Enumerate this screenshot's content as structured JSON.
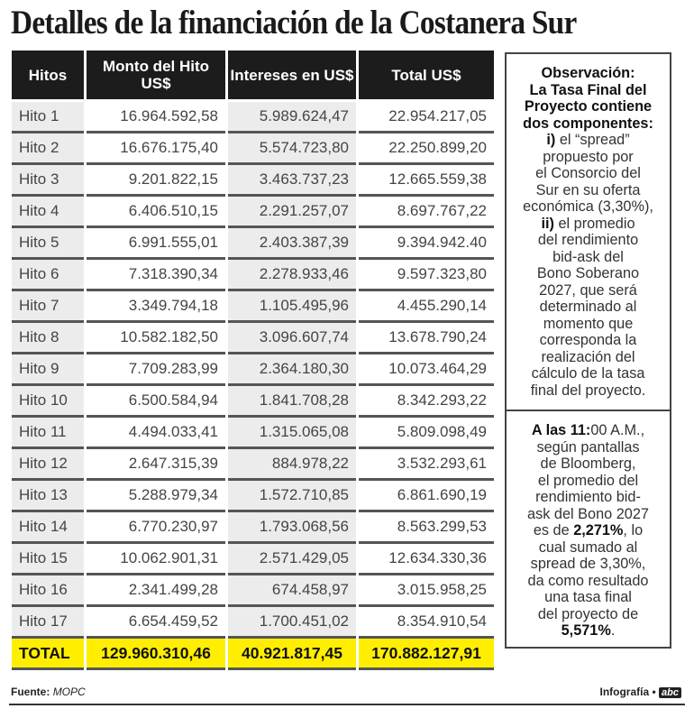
{
  "title": "Detalles de la financiación de la Costanera Sur",
  "table": {
    "headers": [
      "Hitos",
      "Monto del Hito US$",
      "Intereses en US$",
      "Total US$"
    ],
    "rows": [
      [
        "Hito 1",
        "16.964.592,58",
        "5.989.624,47",
        "22.954.217,05"
      ],
      [
        "Hito 2",
        "16.676.175,40",
        "5.574.723,80",
        "22.250.899,20"
      ],
      [
        "Hito 3",
        "9.201.822,15",
        "3.463.737,23",
        "12.665.559,38"
      ],
      [
        "Hito 4",
        "6.406.510,15",
        "2.291.257,07",
        "8.697.767,22"
      ],
      [
        "Hito 5",
        "6.991.555,01",
        "2.403.387,39",
        "9.394.942.40"
      ],
      [
        "Hito 6",
        "7.318.390,34",
        "2.278.933,46",
        "9.597.323,80"
      ],
      [
        "Hito 7",
        "3.349.794,18",
        "1.105.495,96",
        "4.455.290,14"
      ],
      [
        "Hito 8",
        "10.582.182,50",
        "3.096.607,74",
        "13.678.790,24"
      ],
      [
        "Hito 9",
        "7.709.283,99",
        "2.364.180,30",
        "10.073.464,29"
      ],
      [
        "Hito 10",
        "6.500.584,94",
        "1.841.708,28",
        "8.342.293,22"
      ],
      [
        "Hito 11",
        "4.494.033,41",
        "1.315.065,08",
        "5.809.098,49"
      ],
      [
        "Hito 12",
        "2.647.315,39",
        "884.978,22",
        "3.532.293,61"
      ],
      [
        "Hito 13",
        "5.288.979,34",
        "1.572.710,85",
        "6.861.690,19"
      ],
      [
        "Hito 14",
        "6.770.230,97",
        "1.793.068,56",
        "8.563.299,53"
      ],
      [
        "Hito 15",
        "10.062.901,31",
        "2.571.429,05",
        "12.634.330,36"
      ],
      [
        "Hito 16",
        "2.341.499,28",
        "674.458,97",
        "3.015.958,25"
      ],
      [
        "Hito 17",
        "6.654.459,52",
        "1.700.451,02",
        "8.354.910,54"
      ]
    ],
    "total": [
      "TOTAL",
      "129.960.310,46",
      "40.921.817,45",
      "170.882.127,91"
    ]
  },
  "observation": {
    "lines": [
      [
        {
          "t": "Observación:",
          "b": true
        }
      ],
      [
        {
          "t": "La Tasa Final del",
          "b": true
        }
      ],
      [
        {
          "t": "Proyecto contiene",
          "b": true
        }
      ],
      [
        {
          "t": "dos componentes:",
          "b": true
        }
      ],
      [
        {
          "t": "i)",
          "b": true
        },
        {
          "t": " el “spread”",
          "b": false
        }
      ],
      [
        {
          "t": "propuesto por",
          "b": false
        }
      ],
      [
        {
          "t": "el Consorcio del",
          "b": false
        }
      ],
      [
        {
          "t": "Sur en su oferta",
          "b": false
        }
      ],
      [
        {
          "t": "económica (3,30%),",
          "b": false
        }
      ],
      [
        {
          "t": "ii)",
          "b": true
        },
        {
          "t": " el promedio",
          "b": false
        }
      ],
      [
        {
          "t": "del rendimiento",
          "b": false
        }
      ],
      [
        {
          "t": "bid-ask del",
          "b": false
        }
      ],
      [
        {
          "t": "Bono Soberano",
          "b": false
        }
      ],
      [
        {
          "t": "2027, que será",
          "b": false
        }
      ],
      [
        {
          "t": "determinado al",
          "b": false
        }
      ],
      [
        {
          "t": "momento que",
          "b": false
        }
      ],
      [
        {
          "t": "corresponda la",
          "b": false
        }
      ],
      [
        {
          "t": "realización del",
          "b": false
        }
      ],
      [
        {
          "t": "cálculo de la tasa",
          "b": false
        }
      ],
      [
        {
          "t": "final del proyecto.",
          "b": false
        }
      ]
    ]
  },
  "note": {
    "lines": [
      [
        {
          "t": "A las 11:",
          "b": true
        },
        {
          "t": "00 A.M.,",
          "b": false
        }
      ],
      [
        {
          "t": "según pantallas",
          "b": false
        }
      ],
      [
        {
          "t": "de Bloomberg,",
          "b": false
        }
      ],
      [
        {
          "t": "el promedio del",
          "b": false
        }
      ],
      [
        {
          "t": "rendimiento bid-",
          "b": false
        }
      ],
      [
        {
          "t": "ask del Bono 2027",
          "b": false
        }
      ],
      [
        {
          "t": "es de ",
          "b": false
        },
        {
          "t": "2,271%",
          "b": true
        },
        {
          "t": ", lo",
          "b": false
        }
      ],
      [
        {
          "t": "cual sumado al",
          "b": false
        }
      ],
      [
        {
          "t": "spread de 3,30%,",
          "b": false
        }
      ],
      [
        {
          "t": "da como resultado",
          "b": false
        }
      ],
      [
        {
          "t": "una tasa final",
          "b": false
        }
      ],
      [
        {
          "t": "del proyecto de",
          "b": false
        }
      ],
      [
        {
          "t": "5,571%",
          "b": true
        },
        {
          "t": ".",
          "b": false
        }
      ]
    ]
  },
  "footer": {
    "source_label": "Fuente:",
    "source": "MOPC",
    "credit": "Infografía •",
    "logo": "abc"
  }
}
